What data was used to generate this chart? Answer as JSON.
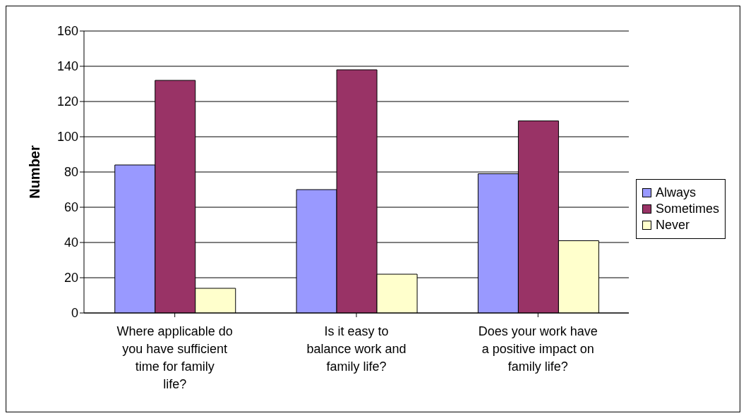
{
  "chart_data": {
    "type": "bar",
    "ylabel": "Number",
    "categories": [
      "Where applicable do you have sufficient time for family life?",
      "Is it easy to balance work and family life?",
      "Does your work have a positive impact on family life?"
    ],
    "series": [
      {
        "name": "Always",
        "color": "#9999ff",
        "values": [
          84,
          70,
          79
        ]
      },
      {
        "name": "Sometimes",
        "color": "#993366",
        "values": [
          132,
          138,
          109
        ]
      },
      {
        "name": "Never",
        "color": "#ffffcc",
        "values": [
          14,
          22,
          41
        ]
      }
    ],
    "ylim": [
      0,
      160
    ],
    "yticks": [
      0,
      20,
      40,
      60,
      80,
      100,
      120,
      140,
      160
    ],
    "grid": "y",
    "legend": "right"
  }
}
